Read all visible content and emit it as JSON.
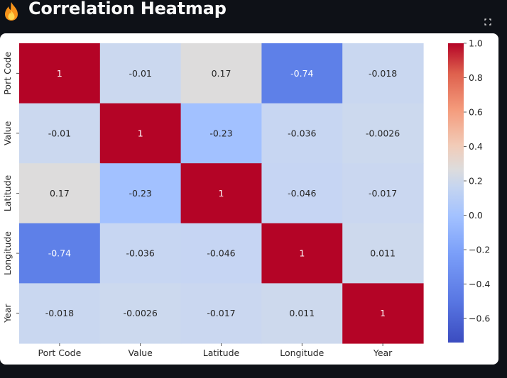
{
  "header": {
    "title": "Correlation Heatmap",
    "icon": "fire-icon"
  },
  "toolbar": {
    "fullscreen_icon": "fullscreen-icon"
  },
  "colors": {
    "background": "#0e1117",
    "card": "#ffffff",
    "title_text": "#fafafa",
    "colormap": "coolwarm"
  },
  "chart_data": {
    "type": "heatmap",
    "colormap": "coolwarm",
    "rows": [
      "Port Code",
      "Value",
      "Latitude",
      "Longitude",
      "Year"
    ],
    "columns": [
      "Port Code",
      "Value",
      "Latitude",
      "Longitude",
      "Year"
    ],
    "values": [
      [
        1,
        -0.01,
        0.17,
        -0.74,
        -0.018
      ],
      [
        -0.01,
        1,
        -0.23,
        -0.036,
        -0.0026
      ],
      [
        0.17,
        -0.23,
        1,
        -0.046,
        -0.017
      ],
      [
        -0.74,
        -0.036,
        -0.046,
        1,
        0.011
      ],
      [
        -0.018,
        -0.0026,
        -0.017,
        0.011,
        1
      ]
    ],
    "annotations": [
      [
        "1",
        "-0.01",
        "0.17",
        "-0.74",
        "-0.018"
      ],
      [
        "-0.01",
        "1",
        "-0.23",
        "-0.036",
        "-0.0026"
      ],
      [
        "0.17",
        "-0.23",
        "1",
        "-0.046",
        "-0.017"
      ],
      [
        "-0.74",
        "-0.036",
        "-0.046",
        "1",
        "0.011"
      ],
      [
        "-0.018",
        "-0.0026",
        "-0.017",
        "0.011",
        "1"
      ]
    ],
    "colorbar": {
      "range": [
        -0.74,
        1.0
      ],
      "ticks": [
        1.0,
        0.8,
        0.6,
        0.4,
        0.2,
        0.0,
        -0.2,
        -0.4,
        -0.6
      ],
      "tick_labels": [
        "1.0",
        "0.8",
        "0.6",
        "0.4",
        "0.2",
        "0.0",
        "−0.2",
        "−0.4",
        "−0.6"
      ]
    }
  }
}
